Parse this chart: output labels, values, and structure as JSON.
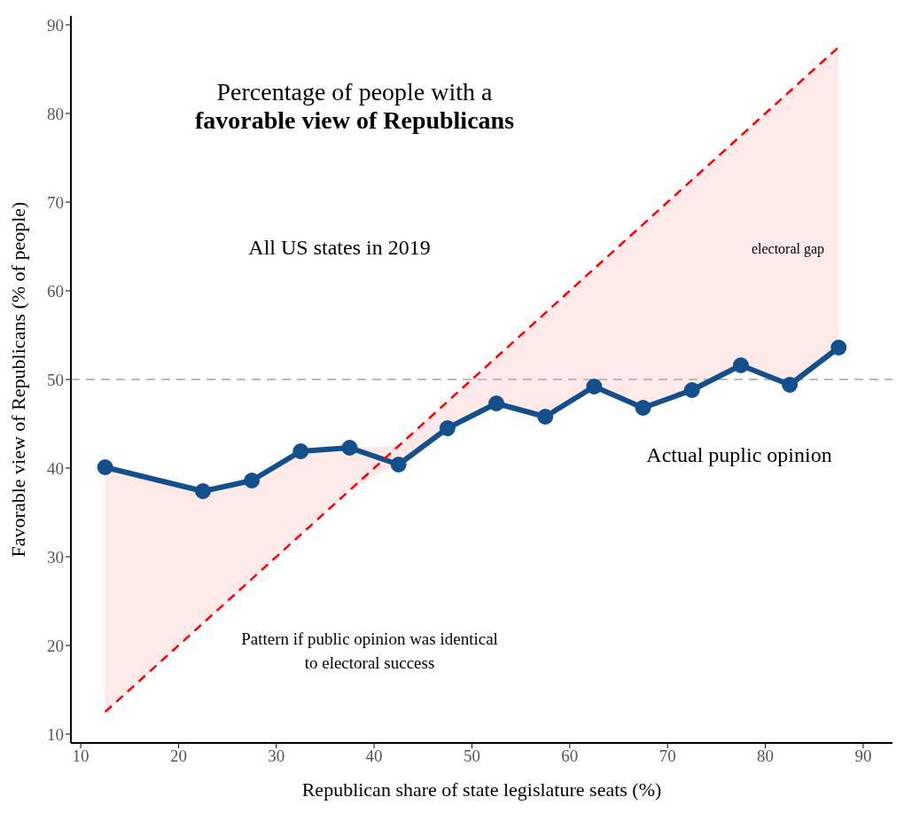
{
  "chart_data": {
    "type": "line",
    "title": "Percentage of people with a",
    "subtitle": "favorable view of Republicans",
    "xlabel": "Republican share of state legislature seats (%)",
    "ylabel": "Favorable view of Republicans (% of people)",
    "x": [
      12.5,
      22.5,
      27.5,
      32.5,
      37.5,
      42.5,
      47.5,
      52.5,
      57.5,
      62.5,
      67.5,
      72.5,
      77.5,
      82.5,
      87.5
    ],
    "series": [
      {
        "color": "#134f8c",
        "marker": "circle",
        "line_style": "solid",
        "values": [
          40.1,
          37.4,
          38.6,
          41.9,
          42.3,
          40.4,
          44.5,
          47.3,
          45.8,
          49.2,
          46.8,
          48.8,
          51.6,
          49.4,
          53.6
        ],
        "lower": [
          12.5,
          22.5,
          27.5,
          32.5,
          37.5,
          40.4,
          44.5,
          47.3,
          45.8,
          49.2,
          46.8,
          48.8,
          51.6,
          49.4,
          53.6
        ],
        "upper": [
          40.1,
          37.4,
          38.6,
          41.9,
          42.3,
          42.5,
          47.5,
          52.5,
          57.5,
          62.5,
          67.5,
          72.5,
          77.5,
          82.5,
          87.5
        ]
      },
      {
        "color": "#ff0000",
        "marker": "none",
        "line_style": "dashed",
        "x": [
          12.5,
          87.5
        ],
        "values": [
          12.5,
          87.5
        ]
      }
    ],
    "ref_lines": [
      {
        "axis": "y",
        "value": 50,
        "color": "#bbbbbb",
        "line_style": "dashed"
      }
    ],
    "annotations": [
      "All US states in 2019",
      "electoral gap",
      "Actual puplic opinion",
      "Pattern if public opinion was identical to electoral success"
    ],
    "xlim": [
      9,
      93
    ],
    "ylim": [
      9,
      91
    ],
    "xticks": [
      10,
      20,
      30,
      40,
      50,
      60,
      70,
      80,
      90
    ],
    "yticks": [
      10,
      20,
      30,
      40,
      50,
      60,
      70,
      80,
      90
    ],
    "grid": false,
    "legend": false
  }
}
